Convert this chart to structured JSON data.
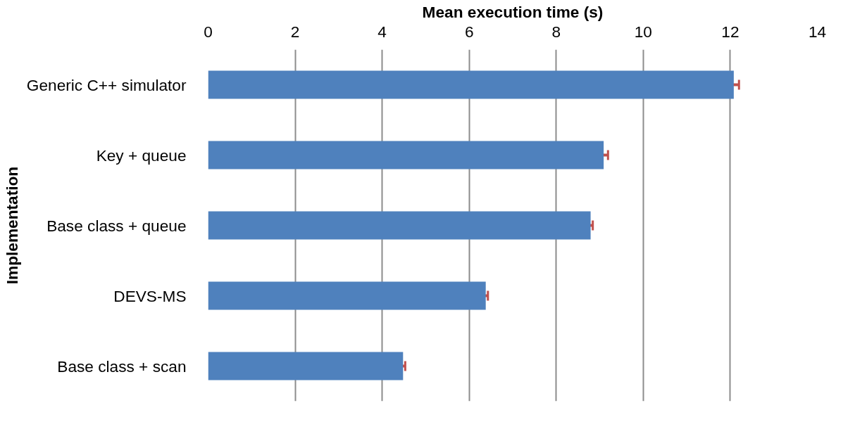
{
  "chart_data": {
    "type": "bar",
    "orientation": "horizontal",
    "xlabel": "Mean execution time (s)",
    "ylabel": "Implementation",
    "categories": [
      "Generic C++ simulator",
      "Key + queue",
      "Base class + queue",
      "DEVS-MS",
      "Base class + scan"
    ],
    "values": [
      12.08,
      9.09,
      8.79,
      6.38,
      4.48
    ],
    "errors": [
      0.12,
      0.1,
      0.05,
      0.05,
      0.05
    ],
    "color": "#4f81bd",
    "xlim": [
      0,
      14
    ],
    "xticks": [
      0,
      2,
      4,
      6,
      8,
      10,
      12,
      14
    ],
    "grid": "x"
  }
}
